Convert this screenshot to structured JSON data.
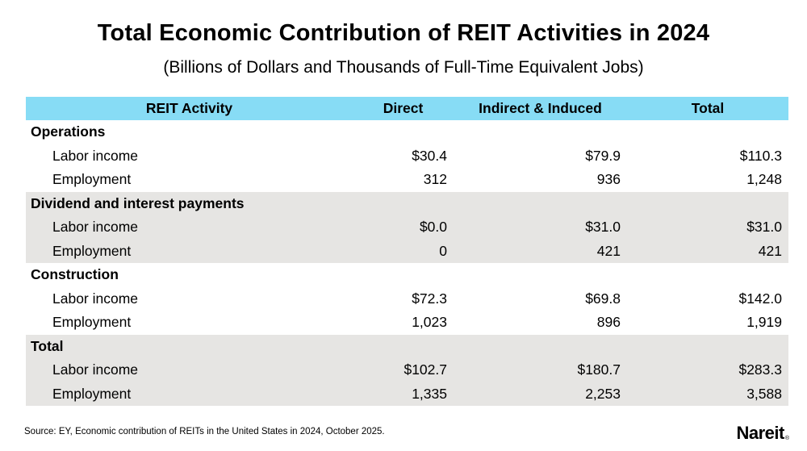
{
  "page": {
    "title": "Total Economic Contribution of REIT Activities in 2024",
    "subtitle": "(Billions of Dollars and Thousands of Full-Time Equivalent Jobs)",
    "source": "Source: EY, Economic contribution of REITs in the United States in 2024, October 2025.",
    "logo": "Nareit",
    "logo_mark": "®"
  },
  "colors": {
    "header_bg": "#87DCF5",
    "band_gray": "#E6E5E3",
    "text": "#000000"
  },
  "table": {
    "columns": [
      "REIT Activity",
      "Direct",
      "Indirect & Induced",
      "Total"
    ],
    "sections": [
      {
        "label": "Operations",
        "rows": [
          {
            "label": "Labor income",
            "direct": "$30.4",
            "indirect": "$79.9",
            "total": "$110.3"
          },
          {
            "label": "Employment",
            "direct": "312",
            "indirect": "936",
            "total": "1,248"
          }
        ]
      },
      {
        "label": "Dividend and interest payments",
        "rows": [
          {
            "label": "Labor income",
            "direct": "$0.0",
            "indirect": "$31.0",
            "total": "$31.0"
          },
          {
            "label": "Employment",
            "direct": "0",
            "indirect": "421",
            "total": "421"
          }
        ]
      },
      {
        "label": "Construction",
        "rows": [
          {
            "label": "Labor income",
            "direct": "$72.3",
            "indirect": "$69.8",
            "total": "$142.0"
          },
          {
            "label": "Employment",
            "direct": "1,023",
            "indirect": "896",
            "total": "1,919"
          }
        ]
      },
      {
        "label": "Total",
        "rows": [
          {
            "label": "Labor income",
            "direct": "$102.7",
            "indirect": "$180.7",
            "total": "$283.3"
          },
          {
            "label": "Employment",
            "direct": "1,335",
            "indirect": "2,253",
            "total": "3,588"
          }
        ]
      }
    ]
  },
  "chart_data": {
    "type": "table",
    "title": "Total Economic Contribution of REIT Activities in 2024",
    "subtitle": "(Billions of Dollars and Thousands of Full-Time Equivalent Jobs)",
    "columns": [
      "REIT Activity",
      "Direct",
      "Indirect & Induced",
      "Total"
    ],
    "sections": [
      {
        "name": "Operations",
        "labor_income_billions": {
          "direct": 30.4,
          "indirect_induced": 79.9,
          "total": 110.3
        },
        "employment_thousands": {
          "direct": 312,
          "indirect_induced": 936,
          "total": 1248
        }
      },
      {
        "name": "Dividend and interest payments",
        "labor_income_billions": {
          "direct": 0.0,
          "indirect_induced": 31.0,
          "total": 31.0
        },
        "employment_thousands": {
          "direct": 0,
          "indirect_induced": 421,
          "total": 421
        }
      },
      {
        "name": "Construction",
        "labor_income_billions": {
          "direct": 72.3,
          "indirect_induced": 69.8,
          "total": 142.0
        },
        "employment_thousands": {
          "direct": 1023,
          "indirect_induced": 896,
          "total": 1919
        }
      },
      {
        "name": "Total",
        "labor_income_billions": {
          "direct": 102.7,
          "indirect_induced": 180.7,
          "total": 283.3
        },
        "employment_thousands": {
          "direct": 1335,
          "indirect_induced": 2253,
          "total": 3588
        }
      }
    ],
    "units": "Labor income in billions of dollars; employment in thousands of full-time equivalent jobs",
    "source": "Source: EY, Economic contribution of REITs in the United States in 2024, October 2025."
  }
}
